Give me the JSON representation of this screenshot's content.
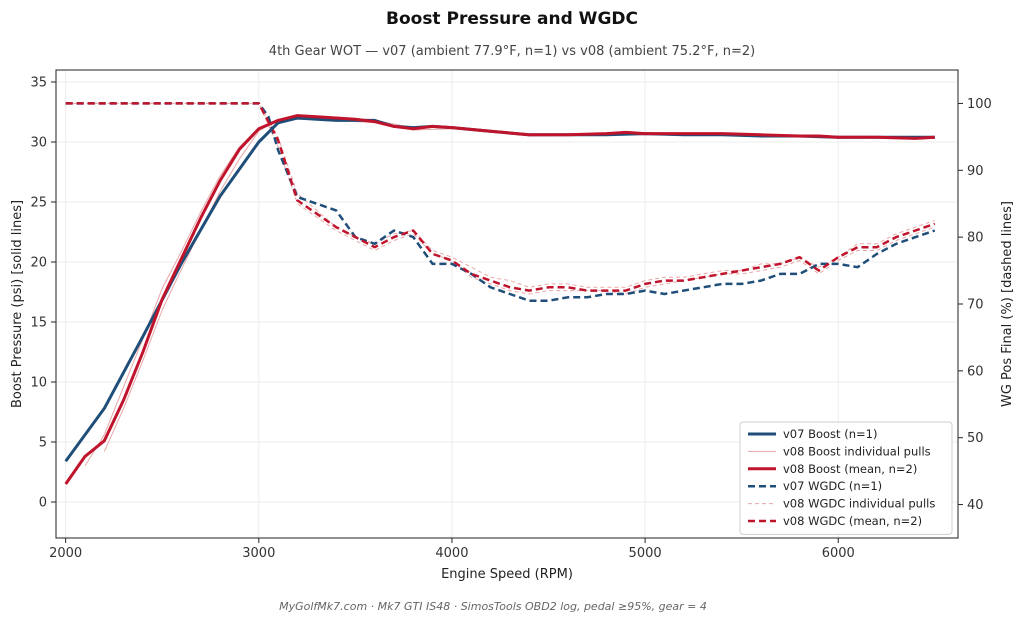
{
  "chart_data": {
    "type": "line",
    "title": "Boost Pressure and WGDC",
    "subtitle": "4th Gear WOT — v07 (ambient 77.9°F, n=1) vs v08 (ambient 75.2°F, n=2)",
    "xlabel": "Engine Speed (RPM)",
    "ylabel_left": "Boost Pressure (psi)   [solid lines]",
    "ylabel_right": "WG Pos Final (%)   [dashed lines]",
    "footer": "MyGolfMk7.com  ·  Mk7 GTI IS48  ·  SimosTools OBD2 log, pedal ≥95%, gear = 4",
    "xlim": [
      1950,
      6620
    ],
    "ylim_left": [
      -3,
      36
    ],
    "ylim_right": [
      35,
      105
    ],
    "x_ticks": [
      2000,
      3000,
      4000,
      5000,
      6000
    ],
    "y_left_ticks": [
      0,
      5,
      10,
      15,
      20,
      25,
      30,
      35
    ],
    "y_right_ticks": [
      40,
      50,
      60,
      70,
      80,
      90,
      100
    ],
    "grid": true,
    "legend_position": "lower-right",
    "colors": {
      "v07": "#1f4e79",
      "v08": "#c0142d",
      "v08_pull": "#e8a8a8"
    },
    "series": [
      {
        "name": "v07 Boost (n=1)",
        "axis": "left",
        "style": "solid",
        "color": "#1f4e79",
        "width": 3,
        "x": [
          2000,
          2200,
          2400,
          2600,
          2800,
          3000,
          3100,
          3200,
          3300,
          3400,
          3500,
          3600,
          3700,
          3800,
          3900,
          4000,
          4200,
          4400,
          4600,
          4800,
          5000,
          5200,
          5400,
          5600,
          5800,
          6000,
          6200,
          6400,
          6500
        ],
        "y": [
          3.4,
          7.8,
          13.8,
          19.9,
          25.5,
          30.0,
          31.6,
          32.0,
          31.9,
          31.8,
          31.8,
          31.8,
          31.3,
          31.2,
          31.3,
          31.2,
          30.9,
          30.6,
          30.6,
          30.6,
          30.7,
          30.6,
          30.6,
          30.5,
          30.5,
          30.4,
          30.4,
          30.4,
          30.4
        ]
      },
      {
        "name": "v08 Boost individual pulls",
        "axis": "left",
        "style": "solid",
        "color": "#e8a8a8",
        "width": 1,
        "x": [
          2200,
          2300,
          2400,
          2500,
          2600,
          2700,
          2800,
          2900,
          3000,
          3100,
          3200,
          3400,
          3600,
          3800,
          4000,
          4400,
          5000,
          5600,
          6000,
          6500
        ],
        "y": [
          4.2,
          7.8,
          11.8,
          16.0,
          19.4,
          22.7,
          25.9,
          28.6,
          30.9,
          31.9,
          32.1,
          32.0,
          31.8,
          31.2,
          31.2,
          30.6,
          30.7,
          30.6,
          30.4,
          30.3
        ]
      },
      {
        "name": "v08 Boost individual pulls",
        "axis": "left",
        "style": "solid",
        "color": "#e8a8a8",
        "width": 1,
        "x": [
          2100,
          2200,
          2300,
          2400,
          2500,
          2600,
          2700,
          2800,
          2900,
          3000,
          3100,
          3200,
          3400,
          3600,
          3800,
          4000,
          4400,
          5000,
          5600,
          6000,
          6500
        ],
        "y": [
          3.0,
          5.6,
          9.6,
          13.6,
          17.8,
          20.9,
          24.2,
          27.2,
          29.6,
          31.2,
          31.7,
          31.9,
          31.8,
          31.6,
          31.0,
          31.1,
          30.5,
          30.6,
          30.5,
          30.3,
          30.4
        ]
      },
      {
        "name": "v08 Boost (mean, n=2)",
        "axis": "left",
        "style": "solid",
        "color": "#c0142d",
        "width": 3,
        "x": [
          2000,
          2100,
          2200,
          2300,
          2400,
          2500,
          2600,
          2700,
          2800,
          2900,
          3000,
          3100,
          3200,
          3300,
          3400,
          3500,
          3600,
          3700,
          3800,
          3900,
          4000,
          4200,
          4400,
          4600,
          4800,
          4900,
          5000,
          5200,
          5400,
          5600,
          5800,
          5900,
          6000,
          6200,
          6400,
          6500
        ],
        "y": [
          1.5,
          3.8,
          5.1,
          8.5,
          12.5,
          16.9,
          20.3,
          23.7,
          26.8,
          29.4,
          31.1,
          31.8,
          32.2,
          32.1,
          32.0,
          31.9,
          31.7,
          31.3,
          31.1,
          31.3,
          31.2,
          30.9,
          30.6,
          30.6,
          30.7,
          30.8,
          30.7,
          30.7,
          30.7,
          30.6,
          30.5,
          30.5,
          30.4,
          30.4,
          30.3,
          30.4
        ]
      },
      {
        "name": "v07 WGDC (n=1)",
        "axis": "right",
        "style": "dashed",
        "color": "#1f4e79",
        "width": 2.5,
        "x": [
          2000,
          3000,
          3050,
          3100,
          3200,
          3300,
          3400,
          3500,
          3600,
          3700,
          3800,
          3900,
          4000,
          4100,
          4200,
          4300,
          4400,
          4500,
          4600,
          4700,
          4800,
          4900,
          5000,
          5100,
          5200,
          5300,
          5400,
          5500,
          5600,
          5700,
          5800,
          5900,
          6000,
          6100,
          6200,
          6300,
          6400,
          6500
        ],
        "y": [
          100,
          100,
          98,
          93,
          86,
          85,
          84,
          80,
          79,
          81,
          80,
          76,
          76,
          74.5,
          72.5,
          71.5,
          70.5,
          70.5,
          71,
          71,
          71.5,
          71.5,
          72,
          71.5,
          72,
          72.5,
          73,
          73,
          73.5,
          74.5,
          74.5,
          76,
          76,
          75.5,
          77.5,
          79,
          80,
          81
        ]
      },
      {
        "name": "v08 WGDC individual pulls",
        "axis": "right",
        "style": "dashed",
        "color": "#e8a8a8",
        "width": 1,
        "x": [
          2000,
          3000,
          3100,
          3200,
          3300,
          3400,
          3500,
          3600,
          3700,
          3800,
          3900,
          4000,
          4100,
          4200,
          4300,
          4400,
          4500,
          4600,
          4700,
          4800,
          4900,
          5000,
          5100,
          5200,
          5300,
          5400,
          5500,
          5600,
          5700,
          5800,
          5900,
          6000,
          6100,
          6200,
          6300,
          6400,
          6500
        ],
        "y": [
          100,
          100,
          95,
          86.5,
          84,
          81.5,
          80,
          79,
          80.5,
          81,
          78,
          77,
          75.5,
          74,
          73.5,
          72.5,
          73,
          73,
          72.5,
          72.5,
          72.5,
          73.5,
          74,
          74,
          74.5,
          75,
          75,
          76,
          76,
          77,
          75.5,
          77,
          79,
          79,
          80.5,
          81.5,
          82.5
        ]
      },
      {
        "name": "v08 WGDC individual pulls",
        "axis": "right",
        "style": "dashed",
        "color": "#e8a8a8",
        "width": 1,
        "x": [
          2000,
          3000,
          3100,
          3200,
          3300,
          3400,
          3500,
          3600,
          3700,
          3800,
          3900,
          4000,
          4100,
          4200,
          4300,
          4400,
          4500,
          4600,
          4700,
          4800,
          4900,
          5000,
          5100,
          5200,
          5300,
          5400,
          5500,
          5600,
          5700,
          5800,
          5900,
          6000,
          6100,
          6200,
          6300,
          6400,
          6500
        ],
        "y": [
          100,
          100,
          93.5,
          85,
          83,
          81,
          79.5,
          78,
          79.5,
          80.5,
          77.5,
          76.5,
          74,
          73,
          72,
          71.5,
          72,
          72,
          72,
          72,
          71.5,
          72.5,
          73,
          73.5,
          74,
          74.5,
          74.5,
          75,
          75.5,
          76.5,
          74.5,
          76.5,
          78,
          78,
          79.5,
          80.5,
          81.5
        ]
      },
      {
        "name": "v08 WGDC (mean, n=2)",
        "axis": "right",
        "style": "dashed",
        "color": "#c0142d",
        "width": 2.5,
        "x": [
          2000,
          3000,
          3100,
          3200,
          3300,
          3400,
          3500,
          3600,
          3700,
          3800,
          3900,
          4000,
          4100,
          4200,
          4300,
          4400,
          4500,
          4600,
          4700,
          4800,
          4900,
          5000,
          5100,
          5200,
          5300,
          5400,
          5500,
          5600,
          5700,
          5800,
          5900,
          6000,
          6100,
          6200,
          6300,
          6400,
          6500
        ],
        "y": [
          100,
          100,
          94.5,
          85.5,
          83.5,
          81.5,
          80,
          78.5,
          80,
          81,
          77.5,
          76.5,
          74.5,
          73.5,
          72.5,
          72,
          72.5,
          72.5,
          72,
          72,
          72,
          73,
          73.5,
          73.5,
          74,
          74.5,
          75,
          75.5,
          76,
          77,
          75,
          77,
          78.5,
          78.5,
          80,
          81,
          82
        ]
      }
    ],
    "legend": [
      {
        "label": "v07 Boost (n=1)",
        "series": 0
      },
      {
        "label": "v08 Boost individual pulls",
        "series": 1
      },
      {
        "label": "v08 Boost (mean, n=2)",
        "series": 3
      },
      {
        "label": "v07 WGDC (n=1)",
        "series": 4
      },
      {
        "label": "v08 WGDC individual pulls",
        "series": 5
      },
      {
        "label": "v08 WGDC (mean, n=2)",
        "series": 7
      }
    ]
  }
}
